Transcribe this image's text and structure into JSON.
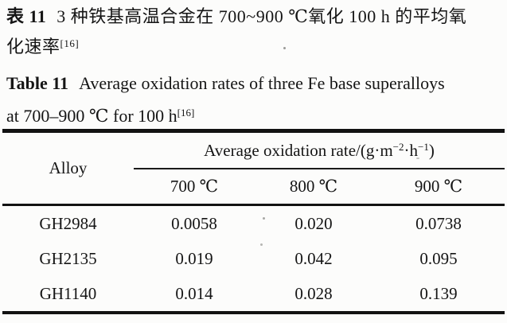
{
  "captions": {
    "cn_label": "表 11",
    "cn_line1": "3 种铁基高温合金在 700~900 ℃氧化 100 h 的平均氧",
    "cn_line2": "化速率",
    "cn_ref": "[16]",
    "en_label": "Table 11",
    "en_line1": "Average oxidation rates of three Fe base superalloys",
    "en_line2": "at 700–900 ℃ for 100 h",
    "en_ref": "[16]"
  },
  "table": {
    "col_alloy": "Alloy",
    "rate_header": {
      "main": "Average oxidation rate/(g·m",
      "sup1": "−2",
      "sep": "·h",
      "sup2": "−1",
      "end": ")"
    },
    "temp_headers": [
      "700 ℃",
      "800 ℃",
      "900 ℃"
    ],
    "rows": [
      {
        "alloy": "GH2984",
        "values": [
          "0.0058",
          "0.020",
          "0.0738"
        ]
      },
      {
        "alloy": "GH2135",
        "values": [
          "0.019",
          "0.042",
          "0.095"
        ]
      },
      {
        "alloy": "GH1140",
        "values": [
          "0.014",
          "0.028",
          "0.139"
        ]
      }
    ]
  },
  "colors": {
    "text": "#151515",
    "rule": "#121212",
    "background": "#fcfcfb"
  }
}
